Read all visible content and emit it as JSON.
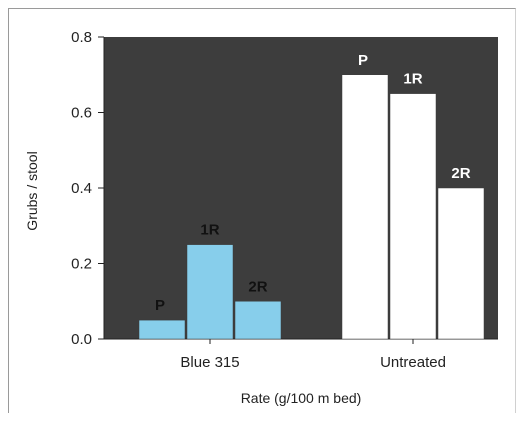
{
  "chart_data": {
    "type": "bar",
    "title": "",
    "xlabel": "Rate (g/100 m bed)",
    "ylabel": "Grubs / stool",
    "ylim": [
      0,
      0.8
    ],
    "yticks": [
      "0.0",
      "0.2",
      "0.4",
      "0.6",
      "0.8"
    ],
    "ytick_values": [
      0,
      0.2,
      0.4,
      0.6,
      0.8
    ],
    "categories": [
      "Blue 315",
      "Untreated"
    ],
    "series": [
      {
        "name": "P",
        "values": [
          0.05,
          0.7
        ]
      },
      {
        "name": "1R",
        "values": [
          0.25,
          0.65
        ]
      },
      {
        "name": "2R",
        "values": [
          0.1,
          0.4
        ]
      }
    ],
    "bar_labels": [
      "P",
      "1R",
      "2R"
    ],
    "colors": {
      "plot_background": "#3d3d3d",
      "treated_bar": "#87ceeb",
      "untreated_bar": "#ffffff",
      "treated_label": "#111111",
      "untreated_label": "#ffffff"
    },
    "grid": false,
    "legend": "none"
  }
}
